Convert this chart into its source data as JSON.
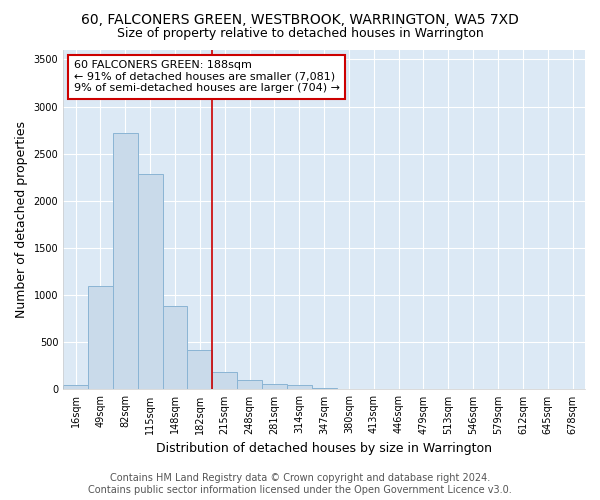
{
  "title_line1": "60, FALCONERS GREEN, WESTBROOK, WARRINGTON, WA5 7XD",
  "title_line2": "Size of property relative to detached houses in Warrington",
  "xlabel": "Distribution of detached houses by size in Warrington",
  "ylabel": "Number of detached properties",
  "categories": [
    "16sqm",
    "49sqm",
    "82sqm",
    "115sqm",
    "148sqm",
    "182sqm",
    "215sqm",
    "248sqm",
    "281sqm",
    "314sqm",
    "347sqm",
    "380sqm",
    "413sqm",
    "446sqm",
    "479sqm",
    "513sqm",
    "546sqm",
    "579sqm",
    "612sqm",
    "645sqm",
    "678sqm"
  ],
  "values": [
    50,
    1100,
    2720,
    2290,
    880,
    415,
    185,
    105,
    60,
    45,
    10,
    0,
    0,
    0,
    0,
    0,
    0,
    0,
    0,
    0,
    0
  ],
  "bar_color": "#c9daea",
  "bar_edge_color": "#8ab4d4",
  "vline_x_index": 5,
  "vline_color": "#cc0000",
  "annotation_text": "60 FALCONERS GREEN: 188sqm\n← 91% of detached houses are smaller (7,081)\n9% of semi-detached houses are larger (704) →",
  "annotation_box_color": "#ffffff",
  "annotation_box_edge_color": "#cc0000",
  "ylim": [
    0,
    3600
  ],
  "yticks": [
    0,
    500,
    1000,
    1500,
    2000,
    2500,
    3000,
    3500
  ],
  "fig_bg_color": "#ffffff",
  "plot_bg_color": "#dce9f5",
  "grid_color": "#ffffff",
  "footer_line1": "Contains HM Land Registry data © Crown copyright and database right 2024.",
  "footer_line2": "Contains public sector information licensed under the Open Government Licence v3.0.",
  "title_fontsize": 10,
  "subtitle_fontsize": 9,
  "axis_label_fontsize": 9,
  "tick_fontsize": 7,
  "annotation_fontsize": 8,
  "footer_fontsize": 7
}
